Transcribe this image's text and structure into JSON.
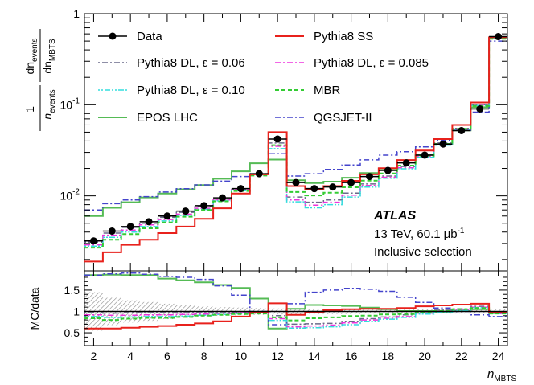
{
  "chart_data": {
    "type": "line",
    "title": "",
    "xlabel": "n",
    "xlabel_sub": "MBTS",
    "ylabel": {
      "one": "1",
      "n": "n",
      "n_sub": "events",
      "dn": "dn",
      "dn_sub": "events",
      "dn2": "dn",
      "dn2_sub": "MBTS"
    },
    "ratio_ylabel": "MC/data",
    "xlim": [
      1.5,
      24.5
    ],
    "ylim": [
      0.0015,
      1.0
    ],
    "ratio_ylim": [
      0.2,
      1.95
    ],
    "yscale": "log",
    "x_ticks": [
      2,
      4,
      6,
      8,
      10,
      12,
      14,
      16,
      18,
      20,
      22,
      24
    ],
    "x_tick_labels": [
      "2",
      "4",
      "6",
      "8",
      "10",
      "12",
      "14",
      "16",
      "18",
      "20",
      "22",
      "24"
    ],
    "y_major_ticks": [
      0.01,
      0.1,
      1
    ],
    "y_tick_labels": [
      {
        "base": "10",
        "exp": "-2",
        "value": 0.01
      },
      {
        "base": "10",
        "exp": "-1",
        "value": 0.1
      },
      {
        "base": "",
        "exp": "",
        "value": 1,
        "plain": "1"
      }
    ],
    "ratio_ticks": [
      0.5,
      1,
      1.5
    ],
    "ratio_tick_labels": [
      "0.5",
      "1",
      "1.5"
    ],
    "annotation": {
      "experiment": "ATLAS",
      "energy": "13 TeV, 60.1",
      "unit": "μb",
      "unit_exp": "-1",
      "selection": "Inclusive selection"
    },
    "x": [
      2,
      3,
      4,
      5,
      6,
      7,
      8,
      9,
      10,
      11,
      12,
      13,
      14,
      15,
      16,
      17,
      18,
      19,
      20,
      21,
      22,
      23,
      24
    ],
    "data": {
      "name": "Data",
      "values": [
        0.0032,
        0.0041,
        0.0046,
        0.0052,
        0.006,
        0.0068,
        0.0078,
        0.0095,
        0.012,
        0.0175,
        0.042,
        0.014,
        0.012,
        0.0125,
        0.014,
        0.0163,
        0.019,
        0.023,
        0.028,
        0.037,
        0.052,
        0.09,
        0.56
      ],
      "ratio_band": [
        0.45,
        0.32,
        0.26,
        0.22,
        0.18,
        0.15,
        0.12,
        0.1,
        0.09,
        0.08,
        0.07,
        0.07,
        0.06,
        0.06,
        0.06,
        0.05,
        0.05,
        0.05,
        0.05,
        0.05,
        0.05,
        0.05,
        0.05
      ]
    },
    "series": [
      {
        "name": "Pythia8 SS",
        "color": "#e8211c",
        "dash": "",
        "width": 2,
        "values": [
          0.0019,
          0.0024,
          0.0029,
          0.0033,
          0.0039,
          0.0046,
          0.0056,
          0.0073,
          0.0106,
          0.0172,
          0.05,
          0.0128,
          0.0118,
          0.0128,
          0.0146,
          0.0172,
          0.0201,
          0.0247,
          0.0314,
          0.042,
          0.06,
          0.106,
          0.55
        ],
        "ratio": [
          0.6,
          0.6,
          0.62,
          0.64,
          0.66,
          0.69,
          0.72,
          0.77,
          0.88,
          0.98,
          1.19,
          0.92,
          0.98,
          1.03,
          1.05,
          1.06,
          1.06,
          1.08,
          1.12,
          1.14,
          1.16,
          1.18,
          0.98
        ]
      },
      {
        "name": "Pythia8 DL, ε = 0.06",
        "color": "#6a6a8a",
        "dash": "2,3,7,3",
        "width": 1.5,
        "values": [
          0.0031,
          0.0039,
          0.0045,
          0.005,
          0.0058,
          0.0066,
          0.0076,
          0.0092,
          0.0118,
          0.0172,
          0.038,
          0.0097,
          0.0085,
          0.009,
          0.0107,
          0.0135,
          0.0165,
          0.021,
          0.028,
          0.038,
          0.055,
          0.1,
          0.53
        ],
        "ratio": [
          0.97,
          0.96,
          0.97,
          0.97,
          0.97,
          0.97,
          0.97,
          0.97,
          0.98,
          0.99,
          0.9,
          0.7,
          0.71,
          0.72,
          0.77,
          0.83,
          0.87,
          0.92,
          0.99,
          1.03,
          1.06,
          1.12,
          0.95
        ]
      },
      {
        "name": "Pythia8 DL, ε = 0.085",
        "color": "#ee33dd",
        "dash": "7,3,2,3",
        "width": 1.5,
        "values": [
          0.0029,
          0.0037,
          0.0042,
          0.0048,
          0.0055,
          0.0063,
          0.0073,
          0.009,
          0.0116,
          0.0172,
          0.035,
          0.009,
          0.0079,
          0.0085,
          0.0102,
          0.013,
          0.016,
          0.0203,
          0.027,
          0.037,
          0.054,
          0.099,
          0.53
        ],
        "ratio": [
          0.92,
          0.91,
          0.91,
          0.92,
          0.92,
          0.93,
          0.94,
          0.95,
          0.97,
          0.98,
          0.83,
          0.64,
          0.66,
          0.68,
          0.73,
          0.8,
          0.84,
          0.88,
          0.96,
          1.0,
          1.04,
          1.1,
          0.95
        ]
      },
      {
        "name": "Pythia8 DL, ε = 0.10",
        "color": "#33dddd",
        "dash": "2,2,2,2,7,2",
        "width": 1.5,
        "values": [
          0.0028,
          0.0035,
          0.004,
          0.0046,
          0.0053,
          0.0061,
          0.0071,
          0.0088,
          0.0114,
          0.0172,
          0.033,
          0.0086,
          0.0074,
          0.008,
          0.0097,
          0.0125,
          0.0156,
          0.0198,
          0.0265,
          0.036,
          0.053,
          0.098,
          0.53
        ],
        "ratio": [
          0.88,
          0.86,
          0.87,
          0.88,
          0.88,
          0.89,
          0.91,
          0.93,
          0.95,
          0.97,
          0.79,
          0.61,
          0.62,
          0.64,
          0.69,
          0.77,
          0.82,
          0.86,
          0.94,
          0.98,
          1.02,
          1.09,
          0.95
        ]
      },
      {
        "name": "MBR",
        "color": "#33cc33",
        "dash": "5,3",
        "width": 2,
        "values": [
          0.0027,
          0.0033,
          0.0038,
          0.0044,
          0.0051,
          0.0059,
          0.007,
          0.0087,
          0.0113,
          0.0167,
          0.036,
          0.011,
          0.0101,
          0.0108,
          0.0124,
          0.0147,
          0.0176,
          0.0215,
          0.0276,
          0.0372,
          0.0545,
          0.097,
          0.53
        ],
        "ratio": [
          0.84,
          0.8,
          0.83,
          0.85,
          0.85,
          0.87,
          0.9,
          0.92,
          0.94,
          0.95,
          0.86,
          0.79,
          0.84,
          0.86,
          0.89,
          0.9,
          0.93,
          0.94,
          0.99,
          1.01,
          1.05,
          1.08,
          0.95
        ]
      },
      {
        "name": "EPOS LHC",
        "color": "#55bb55",
        "dash": "",
        "width": 2,
        "values": [
          0.006,
          0.0074,
          0.0085,
          0.0096,
          0.0106,
          0.0118,
          0.0131,
          0.0154,
          0.0186,
          0.0228,
          0.025,
          0.0148,
          0.0138,
          0.0143,
          0.0158,
          0.0178,
          0.0199,
          0.0232,
          0.0282,
          0.0368,
          0.0523,
          0.094,
          0.54
        ],
        "ratio": [
          1.85,
          1.86,
          1.85,
          1.85,
          1.77,
          1.73,
          1.68,
          1.62,
          1.55,
          1.3,
          0.6,
          1.06,
          1.15,
          1.14,
          1.13,
          1.09,
          1.05,
          1.01,
          1.01,
          0.99,
          1.01,
          1.05,
          0.96
        ]
      },
      {
        "name": "QGSJET-II",
        "color": "#4444cc",
        "dash": "7,3,2,3",
        "width": 1.5,
        "values": [
          0.007,
          0.0082,
          0.009,
          0.0098,
          0.011,
          0.012,
          0.0132,
          0.0145,
          0.0163,
          0.0175,
          0.029,
          0.0165,
          0.0175,
          0.0195,
          0.0218,
          0.0248,
          0.028,
          0.0305,
          0.0345,
          0.0405,
          0.0525,
          0.083,
          0.5
        ],
        "ratio": [
          1.85,
          1.88,
          1.9,
          1.87,
          1.82,
          1.8,
          1.75,
          1.6,
          1.38,
          1.0,
          0.69,
          1.18,
          1.45,
          1.5,
          1.54,
          1.52,
          1.47,
          1.33,
          1.21,
          1.08,
          1.0,
          0.92,
          0.88
        ]
      }
    ],
    "legend": {
      "placement": "top",
      "entries": [
        {
          "label": "Data",
          "ref": "data"
        },
        {
          "label": "Pythia8 SS",
          "ref": 0
        },
        {
          "label": "Pythia8 DL, ε = 0.06",
          "ref": 1
        },
        {
          "label": "Pythia8 DL, ε = 0.085",
          "ref": 2
        },
        {
          "label": "Pythia8 DL, ε = 0.10",
          "ref": 3
        },
        {
          "label": "MBR",
          "ref": 4
        },
        {
          "label": "EPOS LHC",
          "ref": 5
        },
        {
          "label": "QGSJET-II",
          "ref": 6
        }
      ]
    }
  }
}
